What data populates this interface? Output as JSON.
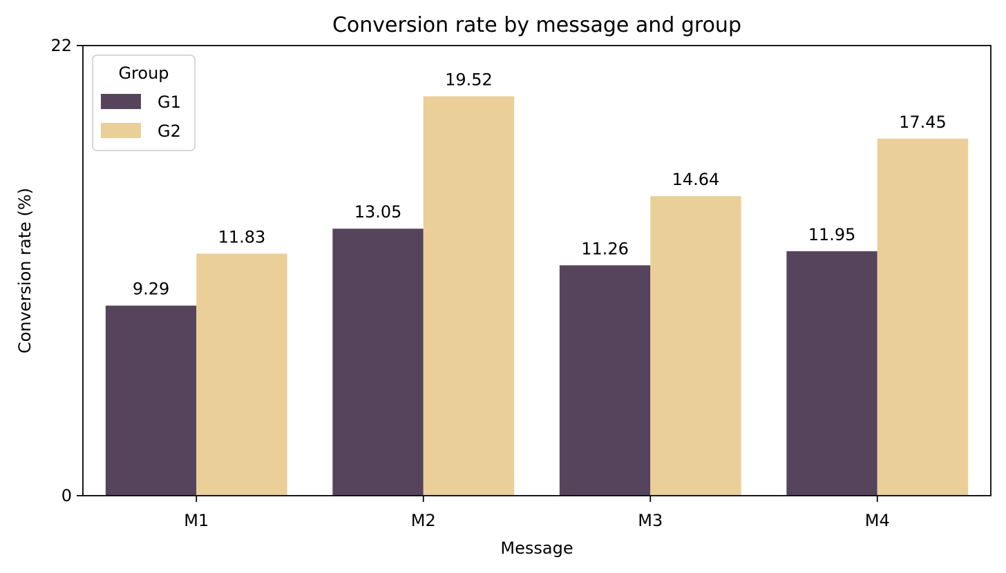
{
  "chart_data": {
    "type": "bar",
    "title": "Conversion rate by message and group",
    "xlabel": "Message",
    "ylabel": "Conversion rate (%)",
    "categories": [
      "M1",
      "M2",
      "M3",
      "M4"
    ],
    "ylim": [
      0,
      22
    ],
    "yticks": [
      0,
      22
    ],
    "grid": false,
    "legend": {
      "title": "Group",
      "placement": "top-left"
    },
    "series": [
      {
        "name": "G1",
        "color": "#56445d",
        "values": [
          9.29,
          13.05,
          11.26,
          11.95
        ],
        "labels": [
          "9.29",
          "13.05",
          "11.26",
          "11.95"
        ]
      },
      {
        "name": "G2",
        "color": "#ebcf98",
        "values": [
          11.83,
          19.52,
          14.64,
          17.45
        ],
        "labels": [
          "11.83",
          "19.52",
          "14.64",
          "17.45"
        ]
      }
    ]
  }
}
